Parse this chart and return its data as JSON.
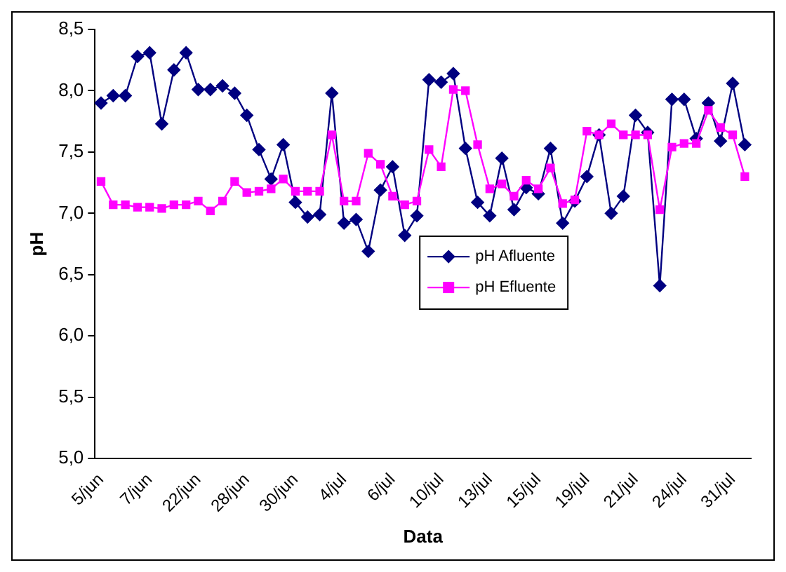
{
  "chart_data": {
    "type": "line",
    "xlabel": "Data",
    "ylabel": "pH",
    "categories": [
      "5/jun",
      null,
      null,
      null,
      "7/jun",
      null,
      null,
      null,
      "22/jun",
      null,
      null,
      null,
      "28/jun",
      null,
      null,
      null,
      "30/jun",
      null,
      null,
      null,
      "4/jul",
      null,
      null,
      null,
      "6/jul",
      null,
      null,
      null,
      "10/jul",
      null,
      null,
      null,
      "13/jul",
      null,
      null,
      null,
      "15/jul",
      null,
      null,
      null,
      "19/jul",
      null,
      null,
      null,
      "21/jul",
      null,
      null,
      null,
      "24/jul",
      null,
      null,
      null,
      "31/jul",
      null
    ],
    "series": [
      {
        "name": "pH Afluente",
        "color": "#000080",
        "marker": "diamond",
        "values": [
          7.9,
          7.96,
          7.96,
          8.28,
          8.31,
          7.73,
          8.17,
          8.31,
          8.01,
          8.01,
          8.04,
          7.98,
          7.8,
          7.52,
          7.28,
          7.56,
          7.09,
          6.97,
          6.99,
          7.98,
          6.92,
          6.95,
          6.69,
          7.19,
          7.38,
          6.82,
          6.98,
          8.09,
          8.07,
          8.14,
          7.53,
          7.09,
          6.98,
          7.45,
          7.03,
          7.21,
          7.16,
          7.53,
          6.92,
          7.1,
          7.3,
          7.64,
          7.0,
          7.14,
          7.8,
          7.66,
          6.41,
          7.93,
          7.93,
          7.61,
          7.9,
          7.59,
          8.06,
          7.56
        ]
      },
      {
        "name": "pH Efluente",
        "color": "#ff00ff",
        "marker": "square",
        "values": [
          7.26,
          7.07,
          7.07,
          7.05,
          7.05,
          7.04,
          7.07,
          7.07,
          7.1,
          7.02,
          7.1,
          7.26,
          7.17,
          7.18,
          7.2,
          7.28,
          7.18,
          7.18,
          7.18,
          7.64,
          7.1,
          7.1,
          7.49,
          7.4,
          7.14,
          7.07,
          7.1,
          7.52,
          7.38,
          8.01,
          8.0,
          7.56,
          7.2,
          7.24,
          7.14,
          7.27,
          7.2,
          7.37,
          7.08,
          7.11,
          7.67,
          7.64,
          7.73,
          7.64,
          7.64,
          7.64,
          7.03,
          7.54,
          7.57,
          7.57,
          7.84,
          7.7,
          7.64,
          7.3
        ]
      }
    ],
    "ylim": [
      5,
      8.5
    ],
    "yticks": [
      {
        "value": 5,
        "label": "5,0"
      },
      {
        "value": 5.5,
        "label": "5,5"
      },
      {
        "value": 6,
        "label": "6,0"
      },
      {
        "value": 6.5,
        "label": "6,5"
      },
      {
        "value": 7,
        "label": "7,0"
      },
      {
        "value": 7.5,
        "label": "7,5"
      },
      {
        "value": 8,
        "label": "8,0"
      },
      {
        "value": 8.5,
        "label": "8,5"
      }
    ],
    "grid": false,
    "legend": "center",
    "line_style": "solid"
  }
}
